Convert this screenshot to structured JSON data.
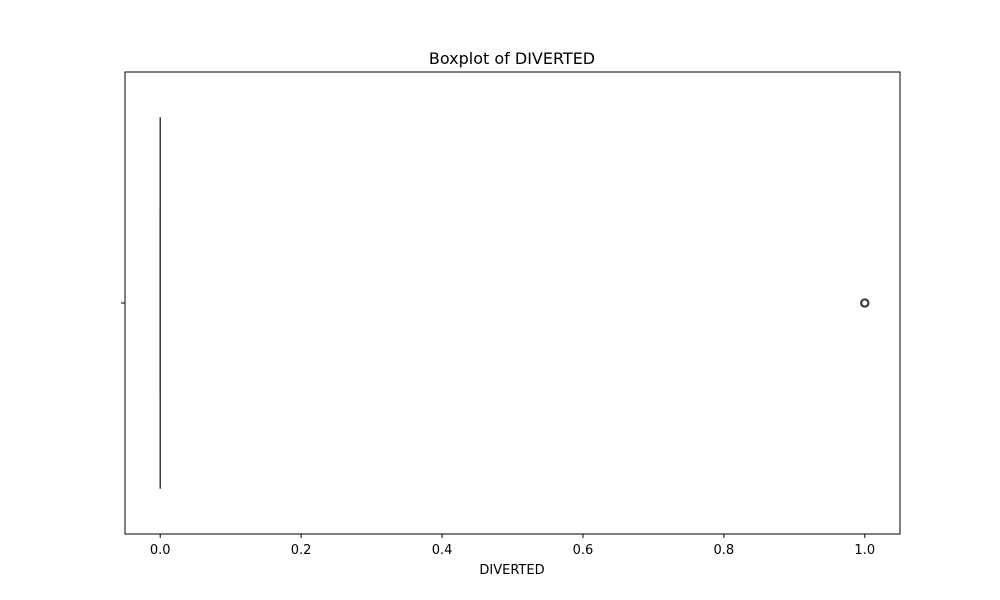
{
  "chart_data": {
    "type": "boxplot",
    "orientation": "horizontal",
    "title": "Boxplot of DIVERTED",
    "xlabel": "DIVERTED",
    "ylabel": "",
    "xlim": [
      -0.05,
      1.05
    ],
    "xticks": [
      0.0,
      0.2,
      0.4,
      0.6,
      0.8,
      1.0
    ],
    "xtick_labels": [
      "0.0",
      "0.2",
      "0.4",
      "0.6",
      "0.8",
      "1.0"
    ],
    "grid": false,
    "series": [
      {
        "name": "DIVERTED",
        "whisker_low": 0.0,
        "q1": 0.0,
        "median": 0.0,
        "q3": 0.0,
        "whisker_high": 0.0,
        "outliers": [
          1.0
        ]
      }
    ],
    "colors": {
      "box_line": "#3f3f3f",
      "outlier_edge": "#3f3f3f",
      "axes": "#000000"
    }
  }
}
